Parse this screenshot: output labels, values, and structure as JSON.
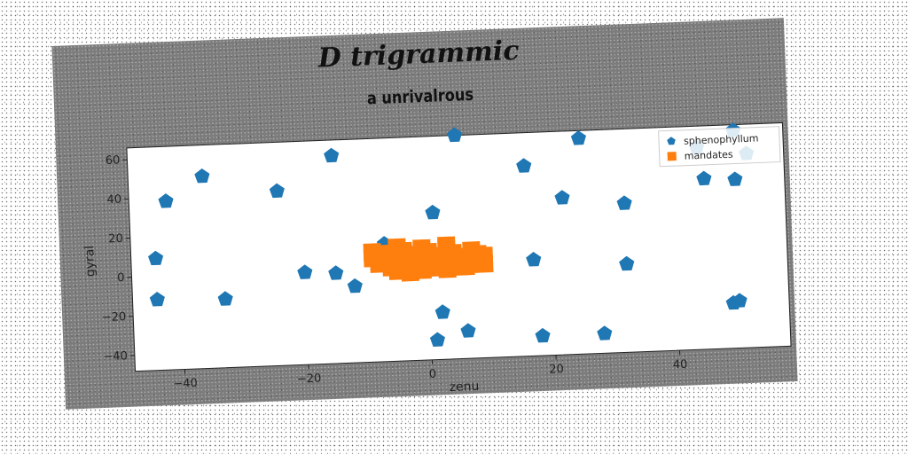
{
  "chart_data": {
    "type": "scatter",
    "title": "D trigrammic",
    "subtitle": "a unrivalrous",
    "xlabel": "zenu",
    "ylabel": "gyral",
    "xlim": [
      -48,
      58
    ],
    "ylim": [
      -48,
      66
    ],
    "xticks": [
      -40,
      -20,
      0,
      20,
      40
    ],
    "yticks": [
      -40,
      -20,
      0,
      20,
      40,
      60
    ],
    "legend_position": "top-right",
    "grid": false,
    "series": [
      {
        "name": "sphenophyllum",
        "color": "#1f77b4",
        "marker": "pentagon",
        "points": [
          [
            -44,
            9
          ],
          [
            -42,
            38
          ],
          [
            -36,
            50
          ],
          [
            -44,
            -12
          ],
          [
            -33,
            -13
          ],
          [
            -24,
            41
          ],
          [
            -20,
            -1
          ],
          [
            -15,
            58
          ],
          [
            -15,
            -2
          ],
          [
            -12,
            -9
          ],
          [
            -7,
            12
          ],
          [
            1,
            27
          ],
          [
            5,
            66
          ],
          [
            2,
            -24
          ],
          [
            1,
            -38
          ],
          [
            6,
            -34
          ],
          [
            16,
            49
          ],
          [
            17,
            1
          ],
          [
            18,
            -38
          ],
          [
            22,
            32
          ],
          [
            25,
            62
          ],
          [
            28,
            -38
          ],
          [
            32,
            28
          ],
          [
            32,
            -3
          ],
          [
            44,
            55
          ],
          [
            45,
            39
          ],
          [
            50,
            38
          ],
          [
            52,
            51
          ],
          [
            50,
            63
          ],
          [
            49,
            -25
          ],
          [
            50,
            -24
          ]
        ]
      },
      {
        "name": "mandates",
        "color": "#ff7f0e",
        "marker": "square",
        "points": [
          [
            -9,
            8
          ],
          [
            -7,
            4
          ],
          [
            -5,
            10
          ],
          [
            -3,
            6
          ],
          [
            -1,
            9
          ],
          [
            1,
            5
          ],
          [
            3,
            8
          ],
          [
            5,
            4
          ],
          [
            7,
            7
          ],
          [
            -8,
            2
          ],
          [
            -6,
            0
          ],
          [
            -4,
            3
          ],
          [
            -2,
            1
          ],
          [
            0,
            2
          ],
          [
            2,
            0
          ],
          [
            4,
            2
          ],
          [
            6,
            -1
          ],
          [
            8,
            1
          ],
          [
            9,
            4
          ],
          [
            -5,
            -2
          ],
          [
            -3,
            -3
          ],
          [
            -1,
            -2
          ],
          [
            1,
            -1
          ],
          [
            3,
            -2
          ],
          [
            5,
            -1
          ],
          [
            7,
            0
          ],
          [
            -7,
            7
          ],
          [
            -4,
            8
          ],
          [
            0,
            7
          ],
          [
            4,
            6
          ],
          [
            8,
            5
          ],
          [
            -2,
            4
          ],
          [
            2,
            3
          ],
          [
            6,
            3
          ],
          [
            -9,
            5
          ],
          [
            -6,
            5
          ],
          [
            9,
            0
          ],
          [
            3,
            10
          ],
          [
            -1,
            0
          ],
          [
            -3,
            1
          ]
        ]
      }
    ]
  }
}
